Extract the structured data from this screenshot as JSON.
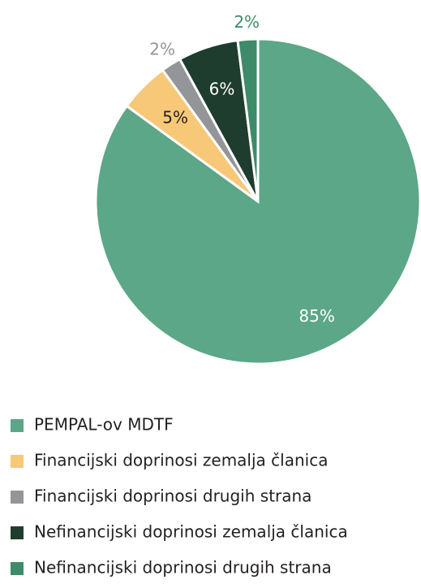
{
  "chart_data": {
    "type": "pie",
    "categories": [
      "PEMPAL-ov MDTF",
      "Financijski doprinosi zemalja članica",
      "Financijski doprinosi drugih strana",
      "Nefinancijski doprinosi zemalja članica",
      "Nefinancijski doprinosi drugih strana"
    ],
    "values": [
      85,
      5,
      2,
      6,
      2
    ],
    "value_labels": [
      "85%",
      "5%",
      "2%",
      "6%",
      "2%"
    ],
    "colors": [
      "#5ba788",
      "#f6c878",
      "#939598",
      "#1f3d2f",
      "#3e8b69"
    ]
  }
}
